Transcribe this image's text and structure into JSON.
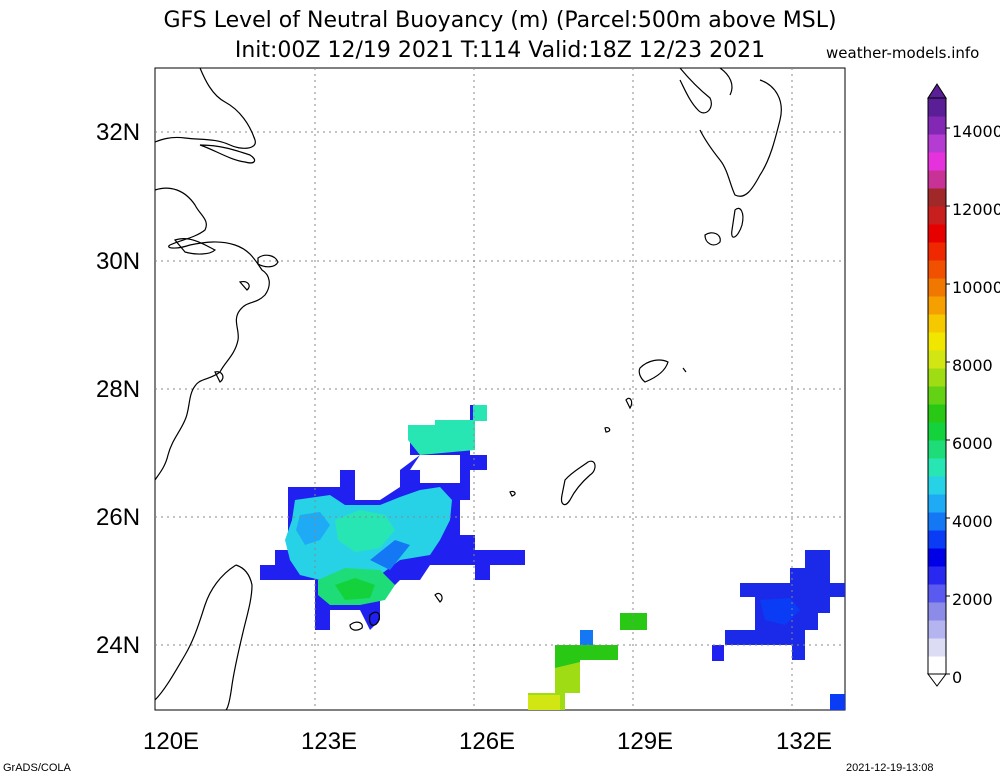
{
  "title": {
    "line1": "GFS Level of Neutral Buoyancy (m) (Parcel:500m above MSL)",
    "line2": "Init:00Z 12/19 2021 T:114 Valid:18Z 12/23 2021",
    "site": "weather-models.info"
  },
  "map": {
    "lon_range": [
      120,
      133.3
    ],
    "lat_range": [
      23,
      33
    ],
    "lon_ticks": [
      "120E",
      "123E",
      "126E",
      "129E",
      "132E"
    ],
    "lat_ticks": [
      "24N",
      "26N",
      "28N",
      "30N",
      "32N"
    ]
  },
  "colorbar": {
    "labels": [
      "0",
      "2000",
      "4000",
      "6000",
      "8000",
      "10000",
      "12000",
      "14000"
    ],
    "colors": [
      "#ffffff",
      "#dcdcf5",
      "#b4b4f0",
      "#8c8ce8",
      "#5a5af0",
      "#2828f0",
      "#0000e6",
      "#0a3cf5",
      "#1478f5",
      "#1eaaf5",
      "#28d2e6",
      "#28e6b4",
      "#1edc78",
      "#14d23c",
      "#28c814",
      "#64d214",
      "#a0dc14",
      "#d2e614",
      "#f0e600",
      "#f5c800",
      "#f5a000",
      "#f07800",
      "#f05000",
      "#f02800",
      "#e60000",
      "#c81e1e",
      "#a02828",
      "#c83296",
      "#e632dc",
      "#b43cd2",
      "#8228b4",
      "#5a1e96"
    ]
  },
  "credits": {
    "left": "GrADS/COLA",
    "right": "2021-12-19-13:08"
  }
}
